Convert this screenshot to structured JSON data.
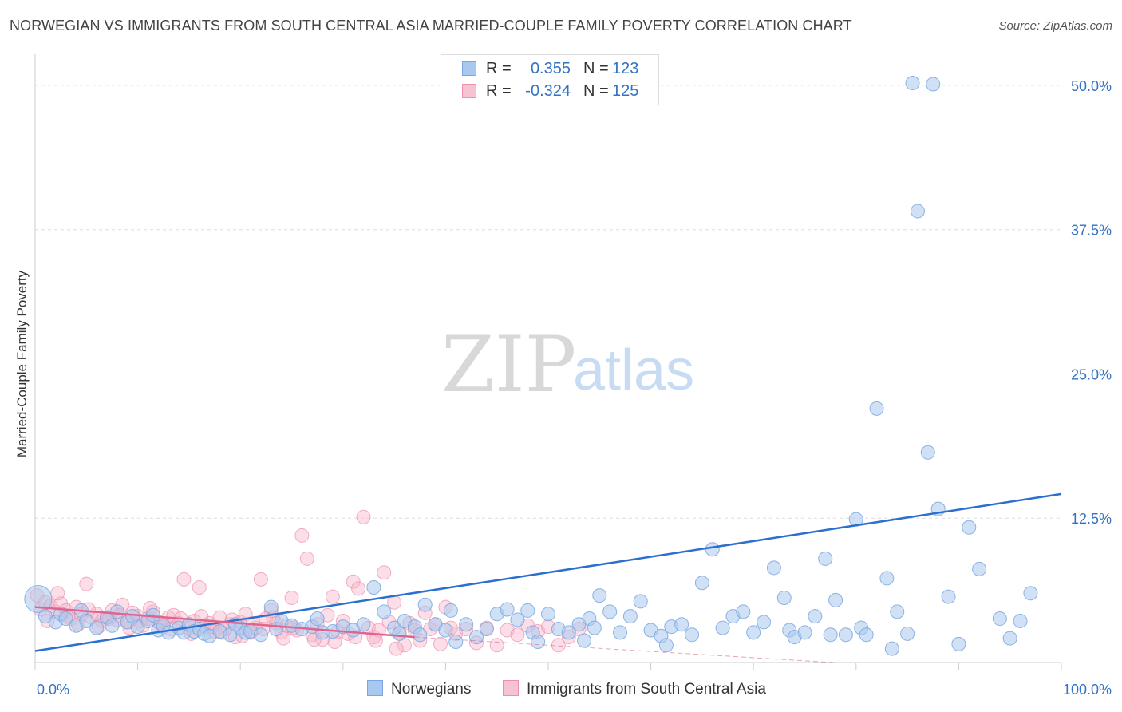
{
  "title": "NORWEGIAN VS IMMIGRANTS FROM SOUTH CENTRAL ASIA MARRIED-COUPLE FAMILY POVERTY CORRELATION CHART",
  "source": "Source: ZipAtlas.com",
  "watermark": {
    "zip": "ZIP",
    "atlas": "atlas"
  },
  "stats": {
    "r_label": "R =",
    "n_label": "N =",
    "rows": [
      {
        "r": "0.355",
        "n": "123"
      },
      {
        "r": "-0.324",
        "n": "125"
      }
    ]
  },
  "legend": {
    "norwegians": "Norwegians",
    "immigrants": "Immigrants from South Central Asia"
  },
  "colors": {
    "blue_fill": "#a9c8ef",
    "blue_stroke": "#7aa7e0",
    "blue_line": "#2b6fcf",
    "pink_fill": "#f6b6c9",
    "pink_stroke": "#ee8fac",
    "pink_line": "#e0648c",
    "axis_text": "#3472c4",
    "grid": "#dddddd"
  },
  "chart_data": {
    "type": "scatter",
    "title": "NORWEGIAN VS IMMIGRANTS FROM SOUTH CENTRAL ASIA MARRIED-COUPLE FAMILY POVERTY CORRELATION CHART",
    "xlabel": "",
    "ylabel": "Married-Couple Family Poverty",
    "xlim": [
      0,
      100
    ],
    "ylim": [
      0,
      52
    ],
    "x_ticks": [
      "0.0%",
      "100.0%"
    ],
    "y_ticks": [
      {
        "value": 12.5,
        "label": "12.5%"
      },
      {
        "value": 25.0,
        "label": "25.0%"
      },
      {
        "value": 37.5,
        "label": "37.5%"
      },
      {
        "value": 50.0,
        "label": "50.0%"
      }
    ],
    "grid": true,
    "legend_position": "bottom-center",
    "series": [
      {
        "name": "Norwegians",
        "r": 0.355,
        "n": 123,
        "trend": [
          [
            0,
            1.0
          ],
          [
            100,
            14.6
          ]
        ],
        "points": [
          [
            0.3,
            5.5
          ],
          [
            1,
            4
          ],
          [
            2,
            3.5
          ],
          [
            2.5,
            4.2
          ],
          [
            3,
            3.8
          ],
          [
            4,
            3.2
          ],
          [
            4.5,
            4.5
          ],
          [
            5,
            3.6
          ],
          [
            6,
            3.0
          ],
          [
            7,
            3.9
          ],
          [
            7.5,
            3.2
          ],
          [
            8,
            4.4
          ],
          [
            9,
            3.5
          ],
          [
            10,
            3.1
          ],
          [
            11,
            3.6
          ],
          [
            11.5,
            4.1
          ],
          [
            12,
            2.8
          ],
          [
            12.5,
            3.2
          ],
          [
            13,
            2.6
          ],
          [
            14,
            3.0
          ],
          [
            14.5,
            2.6
          ],
          [
            15,
            3.3
          ],
          [
            15.5,
            2.7
          ],
          [
            16,
            2.9
          ],
          [
            16.5,
            2.5
          ],
          [
            17,
            2.3
          ],
          [
            18,
            2.7
          ],
          [
            19,
            2.4
          ],
          [
            20,
            3.0
          ],
          [
            20.5,
            2.6
          ],
          [
            21,
            2.7
          ],
          [
            22,
            2.4
          ],
          [
            23,
            4.8
          ],
          [
            23.5,
            2.9
          ],
          [
            24,
            3.6
          ],
          [
            25,
            3.2
          ],
          [
            26,
            2.9
          ],
          [
            27,
            3.1
          ],
          [
            27.5,
            3.8
          ],
          [
            28,
            2.6
          ],
          [
            29,
            2.7
          ],
          [
            30,
            3.1
          ],
          [
            31,
            2.8
          ],
          [
            32,
            3.3
          ],
          [
            33,
            6.5
          ],
          [
            34,
            4.4
          ],
          [
            35,
            3.0
          ],
          [
            35.5,
            2.5
          ],
          [
            36,
            3.6
          ],
          [
            37,
            3.1
          ],
          [
            38,
            5.0
          ],
          [
            39,
            3.3
          ],
          [
            40,
            2.8
          ],
          [
            40.5,
            4.5
          ],
          [
            41,
            1.8
          ],
          [
            42,
            3.3
          ],
          [
            43,
            2.2
          ],
          [
            44,
            2.9
          ],
          [
            45,
            4.2
          ],
          [
            46,
            4.6
          ],
          [
            47,
            3.7
          ],
          [
            48,
            4.5
          ],
          [
            48.5,
            2.6
          ],
          [
            49,
            1.8
          ],
          [
            50,
            4.2
          ],
          [
            51,
            2.9
          ],
          [
            52,
            2.6
          ],
          [
            53,
            3.3
          ],
          [
            54,
            3.8
          ],
          [
            54.5,
            3.0
          ],
          [
            55,
            5.8
          ],
          [
            56,
            4.4
          ],
          [
            57,
            2.6
          ],
          [
            58,
            4.0
          ],
          [
            59,
            5.3
          ],
          [
            60,
            2.8
          ],
          [
            61,
            2.3
          ],
          [
            62,
            3.1
          ],
          [
            63,
            3.3
          ],
          [
            64,
            2.4
          ],
          [
            65,
            6.9
          ],
          [
            66,
            9.8
          ],
          [
            67,
            3.0
          ],
          [
            68,
            4.0
          ],
          [
            69,
            4.4
          ],
          [
            70,
            2.6
          ],
          [
            71,
            3.5
          ],
          [
            72,
            8.2
          ],
          [
            73,
            5.6
          ],
          [
            73.5,
            2.8
          ],
          [
            74,
            2.2
          ],
          [
            75,
            2.6
          ],
          [
            76,
            4.0
          ],
          [
            77,
            9.0
          ],
          [
            77.5,
            2.4
          ],
          [
            78,
            5.4
          ],
          [
            79,
            2.4
          ],
          [
            80,
            12.4
          ],
          [
            80.5,
            3.0
          ],
          [
            81,
            2.4
          ],
          [
            82,
            22.0
          ],
          [
            83,
            7.3
          ],
          [
            83.5,
            1.2
          ],
          [
            84,
            4.4
          ],
          [
            85,
            2.5
          ],
          [
            86,
            39.1
          ],
          [
            87,
            18.2
          ],
          [
            88,
            13.3
          ],
          [
            89,
            5.7
          ],
          [
            90,
            1.6
          ],
          [
            91,
            11.7
          ],
          [
            92,
            8.1
          ],
          [
            94,
            3.8
          ],
          [
            95,
            2.1
          ],
          [
            97,
            6.0
          ],
          [
            96,
            3.6
          ],
          [
            85.5,
            50.2
          ],
          [
            87.5,
            50.1
          ],
          [
            61.5,
            1.5
          ],
          [
            53.5,
            1.9
          ],
          [
            37.5,
            2.4
          ],
          [
            19.5,
            3.3
          ],
          [
            9.5,
            4.0
          ]
        ]
      },
      {
        "name": "Immigrants from South Central Asia",
        "r": -0.324,
        "n": 125,
        "trend": [
          [
            0,
            4.8
          ],
          [
            37,
            2.2
          ]
        ],
        "trend_dashed": [
          [
            37,
            2.2
          ],
          [
            100,
            -1.2
          ]
        ],
        "points": [
          [
            0.2,
            5.8
          ],
          [
            0.5,
            4.6
          ],
          [
            1,
            5.2
          ],
          [
            1.5,
            4.9
          ],
          [
            2,
            4.4
          ],
          [
            2.5,
            5.1
          ],
          [
            3,
            4.5
          ],
          [
            3.5,
            3.8
          ],
          [
            4,
            4.8
          ],
          [
            4.5,
            4.2
          ],
          [
            5,
            6.8
          ],
          [
            5.5,
            3.9
          ],
          [
            6,
            4.2
          ],
          [
            6.5,
            3.6
          ],
          [
            7,
            3.9
          ],
          [
            7.5,
            4.5
          ],
          [
            8,
            3.7
          ],
          [
            8.5,
            5.0
          ],
          [
            9,
            3.5
          ],
          [
            9.5,
            4.3
          ],
          [
            10,
            4.0
          ],
          [
            10.5,
            3.2
          ],
          [
            11,
            3.8
          ],
          [
            11.5,
            4.4
          ],
          [
            12,
            3.5
          ],
          [
            12.5,
            3.1
          ],
          [
            13,
            3.9
          ],
          [
            13.5,
            4.1
          ],
          [
            14,
            3.4
          ],
          [
            14.5,
            7.2
          ],
          [
            15,
            3.0
          ],
          [
            15.5,
            3.6
          ],
          [
            16,
            6.5
          ],
          [
            16.5,
            3.1
          ],
          [
            17,
            3.4
          ],
          [
            17.5,
            2.7
          ],
          [
            18,
            3.9
          ],
          [
            18.5,
            2.9
          ],
          [
            19,
            3.3
          ],
          [
            19.5,
            2.2
          ],
          [
            20,
            3.5
          ],
          [
            20.5,
            4.2
          ],
          [
            21,
            2.6
          ],
          [
            21.5,
            3.0
          ],
          [
            22,
            7.2
          ],
          [
            22.5,
            3.8
          ],
          [
            23,
            4.5
          ],
          [
            23.5,
            3.4
          ],
          [
            24,
            2.6
          ],
          [
            24.5,
            3.2
          ],
          [
            25,
            5.6
          ],
          [
            25.5,
            2.8
          ],
          [
            26,
            11.0
          ],
          [
            26.5,
            9.0
          ],
          [
            27,
            2.4
          ],
          [
            27.5,
            3.3
          ],
          [
            28,
            2.0
          ],
          [
            28.5,
            4.1
          ],
          [
            29,
            5.7
          ],
          [
            29.5,
            2.7
          ],
          [
            30,
            3.6
          ],
          [
            30.5,
            2.5
          ],
          [
            31,
            7.0
          ],
          [
            31.5,
            6.4
          ],
          [
            32,
            12.6
          ],
          [
            32.5,
            3.0
          ],
          [
            33,
            2.2
          ],
          [
            33.5,
            2.8
          ],
          [
            34,
            7.8
          ],
          [
            34.5,
            3.5
          ],
          [
            35,
            5.2
          ],
          [
            35.5,
            2.6
          ],
          [
            36,
            1.5
          ],
          [
            36.5,
            3.4
          ],
          [
            37,
            2.8
          ],
          [
            37.5,
            1.9
          ],
          [
            38,
            4.3
          ],
          [
            38.5,
            2.9
          ],
          [
            39,
            3.3
          ],
          [
            39.5,
            1.6
          ],
          [
            40,
            4.8
          ],
          [
            40.5,
            3.0
          ],
          [
            41,
            2.5
          ],
          [
            42,
            2.9
          ],
          [
            43,
            1.7
          ],
          [
            44,
            3.0
          ],
          [
            45,
            1.5
          ],
          [
            46,
            2.8
          ],
          [
            47,
            2.4
          ],
          [
            48,
            3.2
          ],
          [
            49,
            2.7
          ],
          [
            50,
            3.1
          ],
          [
            51,
            1.5
          ],
          [
            52,
            2.2
          ],
          [
            53,
            2.9
          ],
          [
            1.2,
            3.6
          ],
          [
            2.2,
            6.0
          ],
          [
            3.2,
            4.0
          ],
          [
            4.2,
            3.3
          ],
          [
            5.2,
            4.6
          ],
          [
            6.2,
            3.1
          ],
          [
            7.2,
            3.8
          ],
          [
            8.2,
            4.1
          ],
          [
            9.2,
            3.0
          ],
          [
            10.2,
            3.6
          ],
          [
            11.2,
            4.7
          ],
          [
            12.2,
            3.4
          ],
          [
            13.2,
            2.9
          ],
          [
            14.2,
            3.8
          ],
          [
            15.2,
            2.5
          ],
          [
            16.2,
            4.0
          ],
          [
            17.2,
            3.1
          ],
          [
            18.2,
            2.6
          ],
          [
            19.2,
            3.7
          ],
          [
            20.2,
            2.3
          ],
          [
            21.2,
            3.4
          ],
          [
            22.2,
            2.9
          ],
          [
            23.2,
            3.9
          ],
          [
            24.2,
            2.1
          ],
          [
            25.2,
            3.0
          ],
          [
            27.2,
            2.0
          ],
          [
            29.2,
            1.8
          ],
          [
            31.2,
            2.2
          ],
          [
            33.2,
            1.9
          ],
          [
            35.2,
            1.2
          ]
        ]
      }
    ]
  }
}
